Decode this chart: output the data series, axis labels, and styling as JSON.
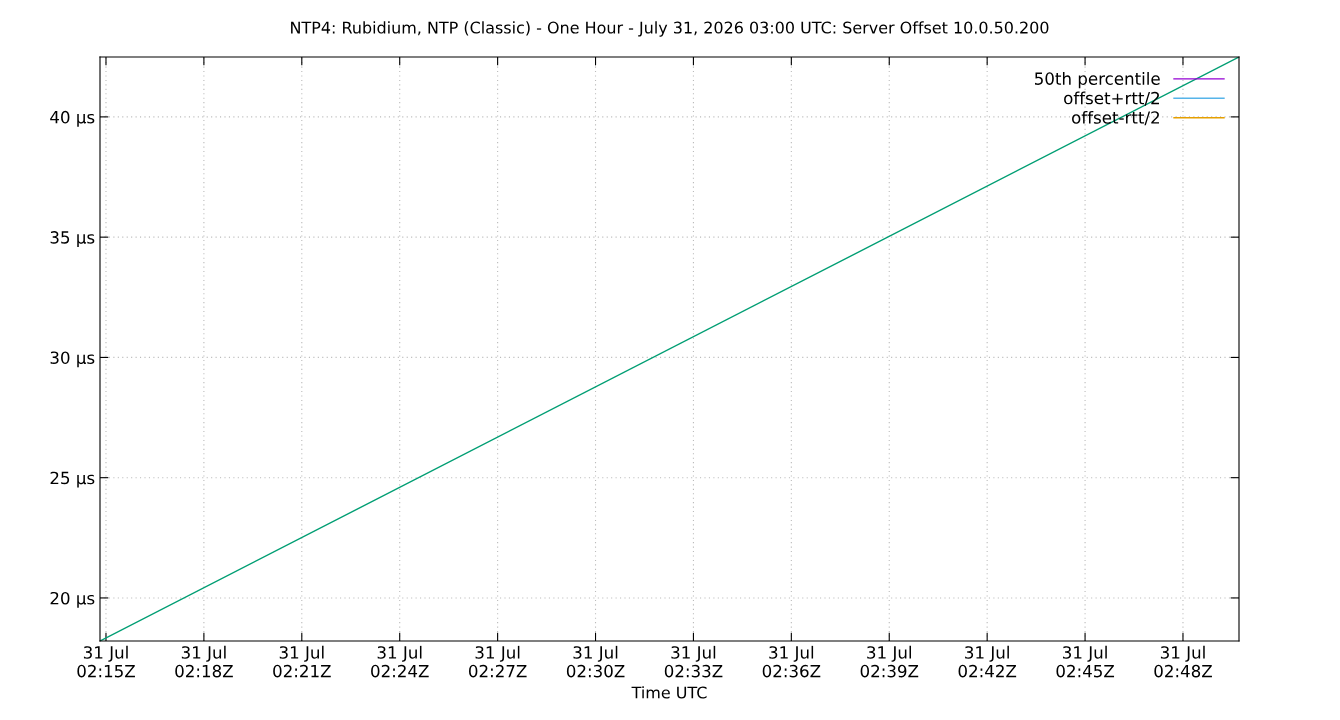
{
  "chart_data": {
    "type": "line",
    "title": "NTP4: Rubidium, NTP (Classic) - One Hour - July 31, 2026 03:00 UTC: Server Offset 10.0.50.200",
    "xlabel": "Time UTC",
    "x": [
      "2026-07-31T02:14:49",
      "2026-07-31T02:49:43"
    ],
    "series": [
      {
        "name": "50th percentile",
        "color": "#9400d3",
        "values": [
          null,
          null
        ]
      },
      {
        "color": "#009e73",
        "values": [
          18.21,
          42.49
        ]
      },
      {
        "name": "offset+rtt/2",
        "color": "#56b4e9",
        "values": [
          null,
          null
        ]
      },
      {
        "name": "offset-rtt/2",
        "color": "#e69f00",
        "values": [
          null,
          null
        ]
      }
    ],
    "xlim": [
      "2026-07-31T02:14:49",
      "2026-07-31T02:49:43"
    ],
    "xticks": [
      {
        "value": "2026-07-31T02:15",
        "label": "31 Jul\n02:15Z"
      },
      {
        "value": "2026-07-31T02:18",
        "label": "31 Jul\n02:18Z"
      },
      {
        "value": "2026-07-31T02:21",
        "label": "31 Jul\n02:21Z"
      },
      {
        "value": "2026-07-31T02:24",
        "label": "31 Jul\n02:24Z"
      },
      {
        "value": "2026-07-31T02:27",
        "label": "31 Jul\n02:27Z"
      },
      {
        "value": "2026-07-31T02:30",
        "label": "31 Jul\n02:30Z"
      },
      {
        "value": "2026-07-31T02:33",
        "label": "31 Jul\n02:33Z"
      },
      {
        "value": "2026-07-31T02:36",
        "label": "31 Jul\n02:36Z"
      },
      {
        "value": "2026-07-31T02:39",
        "label": "31 Jul\n02:39Z"
      },
      {
        "value": "2026-07-31T02:42",
        "label": "31 Jul\n02:42Z"
      },
      {
        "value": "2026-07-31T02:45",
        "label": "31 Jul\n02:45Z"
      },
      {
        "value": "2026-07-31T02:48",
        "label": "31 Jul\n02:48Z"
      }
    ],
    "ylim": [
      18.21,
      42.49
    ],
    "yticks": [
      {
        "value": 20,
        "label": "20 µs"
      },
      {
        "value": 25,
        "label": "25 µs"
      },
      {
        "value": 30,
        "label": "30 µs"
      },
      {
        "value": 35,
        "label": "35 µs"
      },
      {
        "value": 40,
        "label": "40 µs"
      }
    ],
    "grid": true,
    "legend": "top right",
    "marker": "none",
    "line_style": "solid"
  }
}
